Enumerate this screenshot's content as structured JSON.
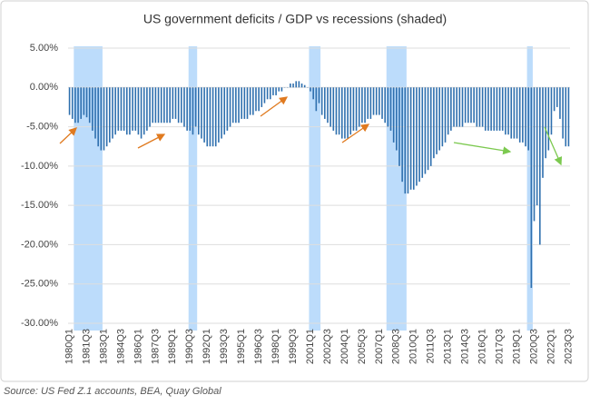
{
  "chart_data": {
    "type": "bar",
    "title": "US government deficits / GDP vs recessions (shaded)",
    "source": "Source: US Fed Z.1 accounts, BEA, Quay Global",
    "color": "#2e6fae",
    "recession_color": "#bcdcfb",
    "recessions": [
      [
        2,
        11
      ],
      [
        42,
        44
      ],
      [
        84,
        87
      ],
      [
        111,
        117
      ],
      [
        160,
        161
      ]
    ],
    "categories": [
      "1980Q1",
      null,
      null,
      null,
      null,
      null,
      "1981Q3",
      null,
      null,
      null,
      null,
      null,
      "1983Q1",
      null,
      null,
      null,
      null,
      null,
      "1984Q3",
      null,
      null,
      null,
      null,
      null,
      "1986Q1",
      null,
      null,
      null,
      null,
      null,
      "1987Q3",
      null,
      null,
      null,
      null,
      null,
      "1989Q1",
      null,
      null,
      null,
      null,
      null,
      "1990Q3",
      null,
      null,
      null,
      null,
      null,
      "1992Q1",
      null,
      null,
      null,
      null,
      null,
      "1993Q3",
      null,
      null,
      null,
      null,
      null,
      "1995Q1",
      null,
      null,
      null,
      null,
      null,
      "1996Q3",
      null,
      null,
      null,
      null,
      null,
      "1998Q1",
      null,
      null,
      null,
      null,
      null,
      "1999Q3",
      null,
      null,
      null,
      null,
      null,
      "2001Q1",
      null,
      null,
      null,
      null,
      null,
      "2002Q3",
      null,
      null,
      null,
      null,
      null,
      "2004Q1",
      null,
      null,
      null,
      null,
      null,
      "2005Q3",
      null,
      null,
      null,
      null,
      null,
      "2007Q1",
      null,
      null,
      null,
      null,
      null,
      "2008Q3",
      null,
      null,
      null,
      null,
      null,
      "2010Q1",
      null,
      null,
      null,
      null,
      null,
      "2011Q3",
      null,
      null,
      null,
      null,
      null,
      "2013Q1",
      null,
      null,
      null,
      null,
      null,
      "2014Q3",
      null,
      null,
      null,
      null,
      null,
      "2016Q1",
      null,
      null,
      null,
      null,
      null,
      "2017Q3",
      null,
      null,
      null,
      null,
      null,
      "2019Q1",
      null,
      null,
      null,
      null,
      null,
      "2020Q3",
      null,
      null,
      null,
      null,
      null,
      "2022Q1",
      null,
      null,
      null,
      null,
      null,
      "2023Q3"
    ],
    "values": [
      -3.5,
      -4,
      -4.5,
      -4.5,
      -4,
      -3.5,
      -3.8,
      -4.5,
      -5.5,
      -6.5,
      -7.5,
      -8,
      -8,
      -7.5,
      -7,
      -6.5,
      -6,
      -5.5,
      -5.5,
      -5.5,
      -6,
      -6,
      -5.5,
      -5.5,
      -6,
      -6.5,
      -6,
      -5.5,
      -5,
      -4.5,
      -4.5,
      -4.5,
      -4.5,
      -4.5,
      -4.5,
      -4.5,
      -4,
      -4,
      -4.5,
      -4.5,
      -5,
      -5.5,
      -5.5,
      -6,
      -5,
      -6,
      -6.5,
      -7,
      -7.5,
      -7.5,
      -7.5,
      -7.5,
      -7,
      -6.5,
      -6,
      -5.5,
      -5,
      -4.5,
      -4.5,
      -4.5,
      -4,
      -4,
      -4,
      -3.5,
      -3.5,
      -3,
      -3,
      -2.5,
      -2,
      -1.5,
      -1.5,
      -1,
      -1,
      -0.5,
      -0.5,
      0,
      0,
      0.5,
      0.5,
      0.8,
      0.8,
      0.5,
      0.3,
      0,
      -0.5,
      -1.5,
      -3,
      -2,
      -3.5,
      -4,
      -4.5,
      -5,
      -5.5,
      -6,
      -6,
      -6.5,
      -6.5,
      -6.5,
      -6,
      -5.5,
      -5.5,
      -5,
      -4.5,
      -4.5,
      -4,
      -4,
      -3.5,
      -3.5,
      -3.5,
      -4,
      -4.5,
      -5,
      -5.5,
      -7,
      -8,
      -10,
      -12,
      -13.5,
      -13.5,
      -13,
      -13,
      -12.5,
      -12,
      -11.5,
      -11,
      -10.5,
      -10,
      -9,
      -8.5,
      -8,
      -7.5,
      -7,
      -6,
      -5.5,
      -5,
      -5,
      -5,
      -5,
      -4.5,
      -4.5,
      -4.5,
      -4.5,
      -5,
      -5,
      -5,
      -5.5,
      -5.5,
      -5.5,
      -5.5,
      -5.5,
      -5.5,
      -5.5,
      -6,
      -6,
      -6.5,
      -6.5,
      -6.5,
      -7,
      -7,
      -7.5,
      -8,
      -25.5,
      -17,
      -15,
      -20,
      -11.5,
      -9,
      -8,
      -6,
      -3,
      -2.5,
      -4,
      -6.5,
      -7.5,
      -7.5
    ],
    "ylim": [
      5,
      -30
    ],
    "yticks": [
      {
        "value": 5,
        "label": "5.00%"
      },
      {
        "value": 0,
        "label": "0.00%"
      },
      {
        "value": -5,
        "label": "-5.00%"
      },
      {
        "value": -10,
        "label": "-10.00%"
      },
      {
        "value": -15,
        "label": "-15.00%"
      },
      {
        "value": -20,
        "label": "-20.00%"
      },
      {
        "value": -25,
        "label": "-25.00%"
      },
      {
        "value": -30,
        "label": "-30.00%"
      }
    ],
    "grid": true
  }
}
